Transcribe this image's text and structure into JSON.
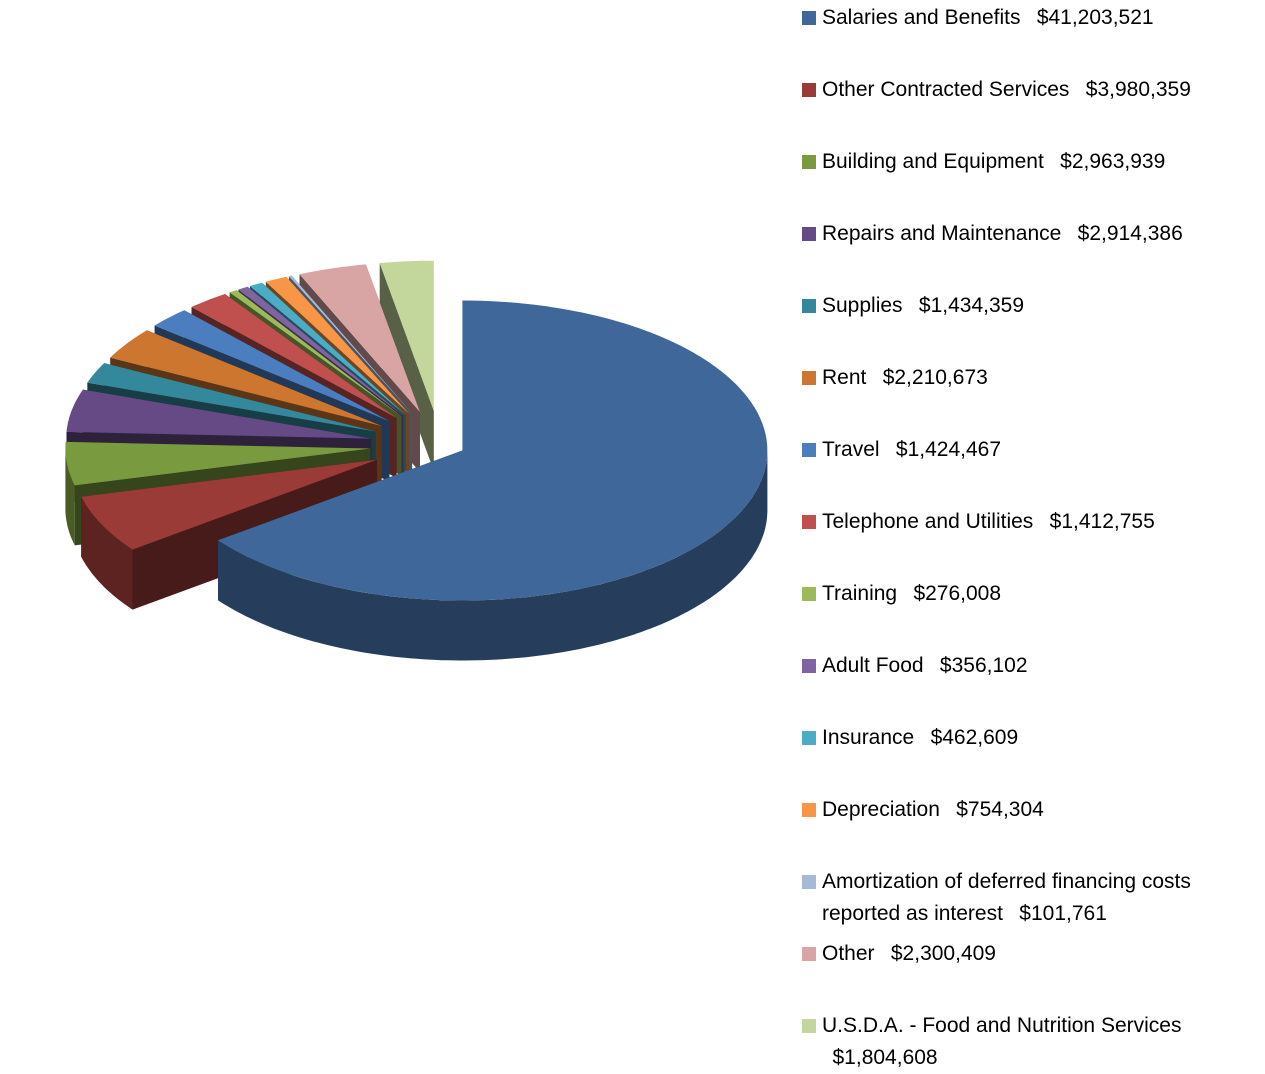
{
  "chart_data": {
    "type": "pie",
    "categories": [
      "Salaries and Benefits",
      "Other Contracted Services",
      "Building and Equipment",
      "Repairs and Maintenance",
      "Supplies",
      "Rent",
      "Travel",
      "Telephone and Utilities",
      "Training",
      "Adult Food",
      "Insurance",
      "Depreciation",
      "Amortization of deferred financing costs reported as interest",
      "Other",
      "U.S.D.A. - Food and Nutrition Services"
    ],
    "values": [
      41203521,
      3980359,
      2963939,
      2914386,
      1434359,
      2210673,
      1424467,
      1412755,
      276008,
      356102,
      462609,
      754304,
      101761,
      2300409,
      1804608
    ],
    "value_labels": [
      "$41,203,521",
      "$3,980,359",
      "$2,963,939",
      "$2,914,386",
      "$1,434,359",
      "$2,210,673",
      "$1,424,467",
      "$1,412,755",
      "$276,008",
      "$356,102",
      "$462,609",
      "$754,304",
      "$101,761",
      "$2,300,409",
      "$1,804,608"
    ],
    "colors": [
      "#3f679a",
      "#9b3b37",
      "#7a9a3f",
      "#654a85",
      "#33899b",
      "#cc7630",
      "#4a7ebf",
      "#c0504d",
      "#9bbb59",
      "#8064a2",
      "#4bacc6",
      "#f79646",
      "#a5b9d9",
      "#d9a5a4",
      "#c3d69b"
    ],
    "legend": "right"
  }
}
